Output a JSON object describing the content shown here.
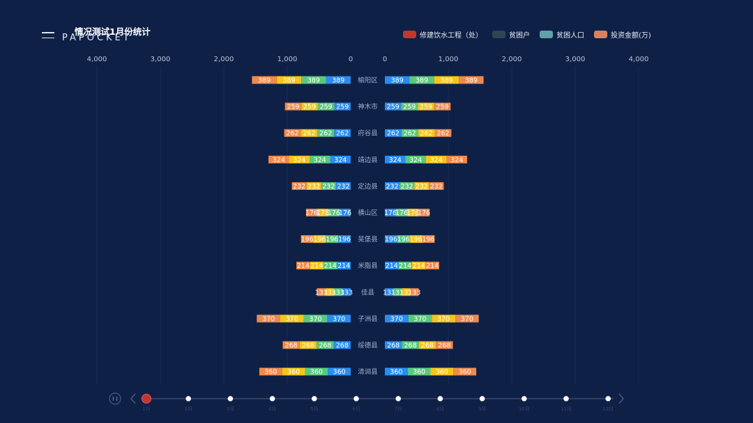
{
  "brand": {
    "name": "PAPOCKET"
  },
  "chart_data": {
    "type": "bar",
    "title": "情况测试1月份统计",
    "legend": [
      {
        "name": "修建饮水工程（处）",
        "color": "#c23531"
      },
      {
        "name": "贫困户",
        "color": "#2f4554"
      },
      {
        "name": "贫困人口",
        "color": "#61a0a8"
      },
      {
        "name": "投资金额(万)",
        "color": "#d48265"
      }
    ],
    "stack_colors": [
      "#2b8cf0",
      "#5cc87e",
      "#f5c518",
      "#f08a4b"
    ],
    "categories": [
      "榆阳区",
      "神木市",
      "府谷县",
      "靖边县",
      "定边县",
      "横山区",
      "吴堡县",
      "米脂县",
      "佳县",
      "子洲县",
      "绥德县",
      "清涧县"
    ],
    "values": [
      389,
      259,
      262,
      324,
      232,
      176,
      196,
      214,
      133,
      370,
      268,
      360
    ],
    "xlim": [
      0,
      4000
    ],
    "x_ticks": [
      "0",
      "1,000",
      "2,000",
      "3,000",
      "4,000"
    ],
    "grid": true,
    "layout": "mirrored horizontal stacked bars",
    "timeline": {
      "labels": [
        "1月",
        "2月",
        "3月",
        "4月",
        "5月",
        "6月",
        "7月",
        "8月",
        "9月",
        "10月",
        "11月",
        "12月"
      ],
      "current_index": 0
    }
  }
}
